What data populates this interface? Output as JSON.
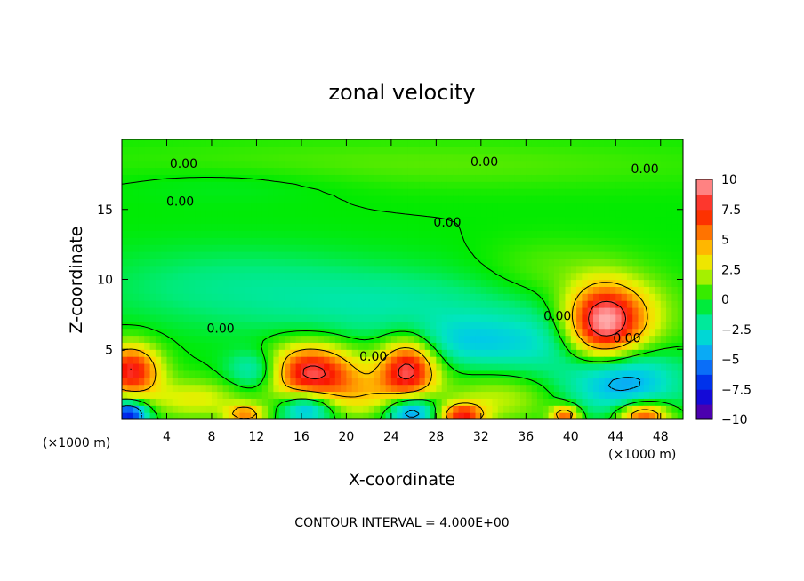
{
  "chart_data": {
    "type": "heatmap",
    "title": "zonal velocity",
    "xlabel": "X-coordinate",
    "ylabel": "Z-coordinate",
    "x_unit_left": "(×1000 m)",
    "x_unit_right": "(×1000 m)",
    "xlim": [
      0,
      50
    ],
    "ylim": [
      0,
      20
    ],
    "x_ticks": [
      4,
      8,
      12,
      16,
      20,
      24,
      28,
      32,
      36,
      40,
      44,
      48
    ],
    "y_ticks": [
      5,
      10,
      15
    ],
    "note": "CONTOUR INTERVAL = 4.000E+00",
    "colorbar": {
      "min": -10,
      "max": 10,
      "ticks": [
        "10",
        "7.5",
        "5",
        "2.5",
        "0",
        "−2.5",
        "−5",
        "−7.5",
        "−10"
      ],
      "tick_values": [
        10,
        7.5,
        5,
        2.5,
        0,
        -2.5,
        -5,
        -7.5,
        -10
      ]
    },
    "contour_labels": [
      {
        "text": "0.00",
        "x": 5.5,
        "y": 18.3
      },
      {
        "text": "0.00",
        "x": 32.3,
        "y": 18.4
      },
      {
        "text": "0.00",
        "x": 46.6,
        "y": 17.9
      },
      {
        "text": "0.00",
        "x": 5.2,
        "y": 15.6
      },
      {
        "text": "0.00",
        "x": 29.0,
        "y": 14.1
      },
      {
        "text": "0.00",
        "x": 8.8,
        "y": 6.5
      },
      {
        "text": "0.00",
        "x": 22.4,
        "y": 4.5
      },
      {
        "text": "0.00",
        "x": 38.8,
        "y": 7.4
      },
      {
        "text": "0.00",
        "x": 45.0,
        "y": 5.8
      }
    ],
    "features": [
      {
        "x": 0.8,
        "y": 3.5,
        "sx": 1.8,
        "sy": 1.3,
        "v": 8
      },
      {
        "x": 16.8,
        "y": 3.4,
        "sx": 2.8,
        "sy": 1.4,
        "v": 8.5
      },
      {
        "x": 25.5,
        "y": 3.6,
        "sx": 1.8,
        "sy": 1.5,
        "v": 8.5
      },
      {
        "x": 42.8,
        "y": 6.9,
        "sx": 2.3,
        "sy": 1.9,
        "v": 9
      },
      {
        "x": 44.5,
        "y": 2.8,
        "sx": 3.5,
        "sy": 1.6,
        "v": -5
      },
      {
        "x": 12.0,
        "y": 3.5,
        "sx": 1.8,
        "sy": 1.0,
        "v": -3.5
      },
      {
        "x": 16.5,
        "y": 0.8,
        "sx": 1.6,
        "sy": 0.8,
        "v": -5
      },
      {
        "x": 25.8,
        "y": 0.6,
        "sx": 1.6,
        "sy": 0.8,
        "v": -6
      },
      {
        "x": 0.6,
        "y": 0.4,
        "sx": 1.2,
        "sy": 0.7,
        "v": -8
      },
      {
        "x": 30.3,
        "y": 0.3,
        "sx": 1.4,
        "sy": 0.6,
        "v": 7
      },
      {
        "x": 46.5,
        "y": 0.3,
        "sx": 1.6,
        "sy": 0.7,
        "v": 7
      },
      {
        "x": 39.5,
        "y": 0.3,
        "sx": 0.9,
        "sy": 0.5,
        "v": 6
      },
      {
        "x": 11.0,
        "y": 0.4,
        "sx": 1.2,
        "sy": 0.5,
        "v": 5
      },
      {
        "x": 6.5,
        "y": 1.5,
        "sx": 3.0,
        "sy": 1.0,
        "v": 2.8
      },
      {
        "x": 21.5,
        "y": 1.8,
        "sx": 2.5,
        "sy": 1.2,
        "v": 2.8
      },
      {
        "x": 33.5,
        "y": 1.5,
        "sx": 3.5,
        "sy": 1.2,
        "v": 2.2
      },
      {
        "x": 45.5,
        "y": 7.5,
        "sx": 3.0,
        "sy": 2.0,
        "v": 2.5
      },
      {
        "x": 10.0,
        "y": 9.5,
        "sx": 9.0,
        "sy": 2.0,
        "v": -1.5
      },
      {
        "x": 25.0,
        "y": 8.0,
        "sx": 8.0,
        "sy": 1.8,
        "v": -1.8
      },
      {
        "x": 36.0,
        "y": 5.5,
        "sx": 4.0,
        "sy": 1.5,
        "v": -2.5
      },
      {
        "x": 30.0,
        "y": 5.5,
        "sx": 3.0,
        "sy": 1.2,
        "v": -2.0
      },
      {
        "x": 25.0,
        "y": 18.3,
        "sx": 22.0,
        "sy": 1.3,
        "v": 1.0
      },
      {
        "x": 38.0,
        "y": 10.8,
        "sx": 4.0,
        "sy": 1.5,
        "v": 1.0
      },
      {
        "x": 10.0,
        "y": 17.0,
        "sx": 8.0,
        "sy": 1.0,
        "v": -0.6
      }
    ],
    "grid": false
  }
}
